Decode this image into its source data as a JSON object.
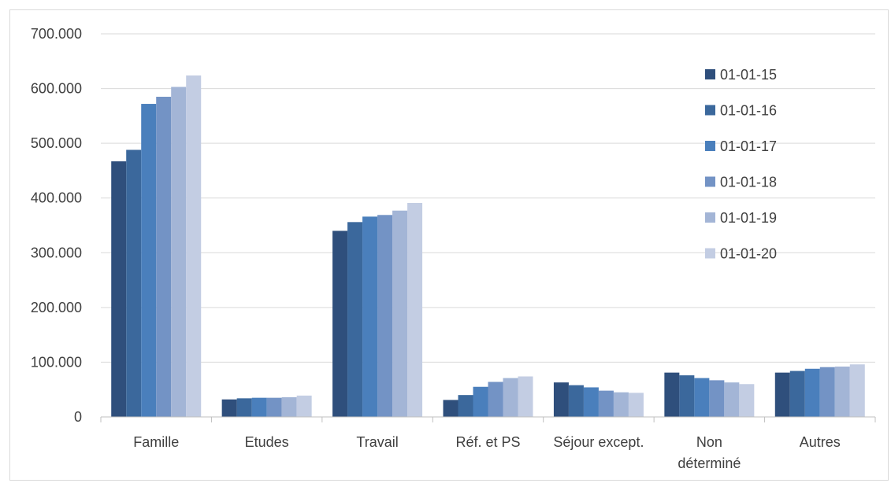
{
  "chart_data": {
    "type": "bar",
    "title": "",
    "xlabel": "",
    "ylabel": "",
    "ylim": [
      0,
      700000
    ],
    "yticks": [
      0,
      100000,
      200000,
      300000,
      400000,
      500000,
      600000,
      700000
    ],
    "ytick_labels": [
      "0",
      "100.000",
      "200.000",
      "300.000",
      "400.000",
      "500.000",
      "600.000",
      "700.000"
    ],
    "categories": [
      [
        "Famille"
      ],
      [
        "Etudes"
      ],
      [
        "Travail"
      ],
      [
        "Réf. et PS"
      ],
      [
        "Séjour except."
      ],
      [
        "Non",
        "déterminé"
      ],
      [
        "Autres"
      ]
    ],
    "grid": true,
    "legend_position": "right",
    "series": [
      {
        "name": "01-01-15",
        "color": "#2f4f7c",
        "values": [
          467000,
          32000,
          340000,
          31000,
          63000,
          81000,
          81000
        ]
      },
      {
        "name": "01-01-16",
        "color": "#3b689c",
        "values": [
          488000,
          34000,
          356000,
          40000,
          58000,
          76000,
          84000
        ]
      },
      {
        "name": "01-01-17",
        "color": "#4a7fbc",
        "values": [
          572000,
          35000,
          366000,
          55000,
          54000,
          71000,
          88000
        ]
      },
      {
        "name": "01-01-18",
        "color": "#7393c5",
        "values": [
          585000,
          35000,
          369000,
          64000,
          48000,
          67000,
          91000
        ]
      },
      {
        "name": "01-01-19",
        "color": "#a3b5d6",
        "values": [
          603000,
          36000,
          377000,
          71000,
          45000,
          63000,
          92000
        ]
      },
      {
        "name": "01-01-20",
        "color": "#c3cde3",
        "values": [
          624000,
          39000,
          391000,
          74000,
          44000,
          60000,
          96000
        ]
      }
    ]
  }
}
